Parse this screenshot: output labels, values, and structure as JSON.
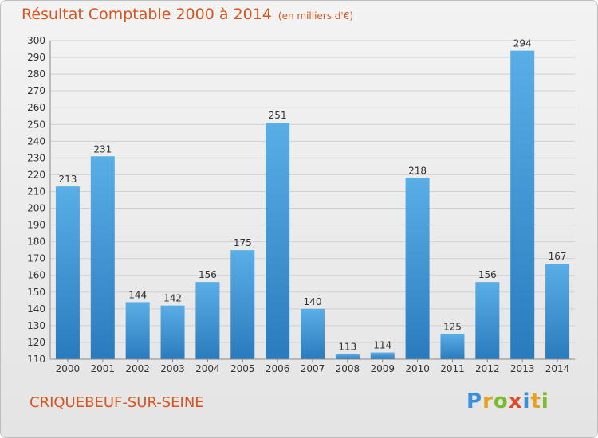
{
  "header": {
    "title": "Résultat Comptable 2000 à 2014",
    "subtitle": "(en milliers d'€)"
  },
  "footer": {
    "city": "CRIQUEBEUF-SUR-SEINE",
    "logo": "Proxiti"
  },
  "colors": {
    "title": "#d9541e",
    "bar_light": "#5aaee6",
    "bar_dark": "#2a7bbd",
    "grid": "#d0d0d0"
  },
  "chart_data": {
    "type": "bar",
    "title": "Résultat Comptable 2000 à 2014",
    "subtitle": "(en milliers d'€)",
    "xlabel": "",
    "ylabel": "",
    "categories": [
      "2000",
      "2001",
      "2002",
      "2003",
      "2004",
      "2005",
      "2006",
      "2007",
      "2008",
      "2009",
      "2010",
      "2011",
      "2012",
      "2013",
      "2014"
    ],
    "values": [
      213,
      231,
      144,
      142,
      156,
      175,
      251,
      140,
      113,
      114,
      218,
      125,
      156,
      294,
      167
    ],
    "ylim": [
      110,
      300
    ],
    "yticks": [
      110,
      120,
      130,
      140,
      150,
      160,
      170,
      180,
      190,
      200,
      210,
      220,
      230,
      240,
      250,
      260,
      270,
      280,
      290,
      300
    ],
    "grid": true,
    "legend": "none"
  }
}
